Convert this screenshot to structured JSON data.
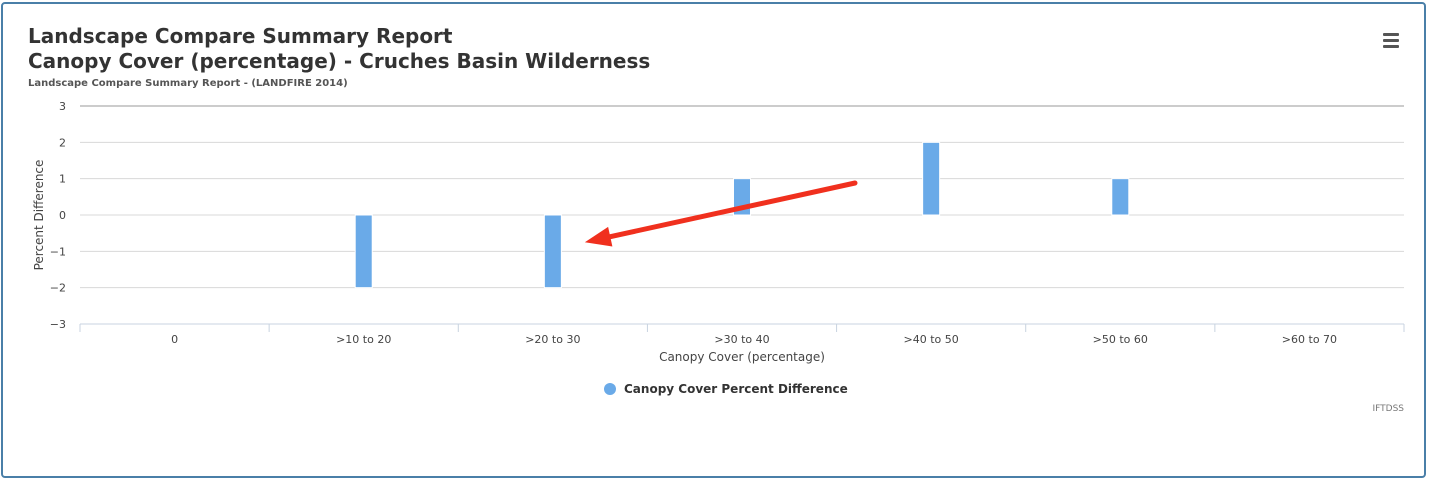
{
  "title_line1": "Landscape Compare Summary Report",
  "title_line2": "Canopy Cover (percentage) - Cruches Basin Wilderness",
  "subtitle": "Landscape Compare Summary Report - (LANDFIRE 2014)",
  "menu_icon": "hamburger-menu-icon",
  "credit": "IFTDSS",
  "colors": {
    "bar": "#6aaae8",
    "annotation_arrow": "#f0301e",
    "grid": "#d8d8d8"
  },
  "chart_data": {
    "type": "bar",
    "categories": [
      "0",
      ">10 to 20",
      ">20 to 30",
      ">30 to 40",
      ">40 to 50",
      ">50 to 60",
      ">60 to 70"
    ],
    "series": [
      {
        "name": "Canopy Cover Percent Difference",
        "values": [
          0,
          -2,
          -2,
          1,
          2,
          1,
          0
        ]
      }
    ],
    "xlabel": "Canopy Cover (percentage)",
    "ylabel": "Percent Difference",
    "ylim": [
      -3,
      3
    ],
    "yticks": [
      3,
      2,
      1,
      0,
      -1,
      -2,
      -3
    ],
    "ytick_labels": [
      "3",
      "2",
      "1",
      "0",
      "−1",
      "−2",
      "−3"
    ],
    "grid": true,
    "legend_position": "bottom-center",
    "annotation": {
      "type": "arrow",
      "points_to_category": ">20 to 30"
    }
  }
}
